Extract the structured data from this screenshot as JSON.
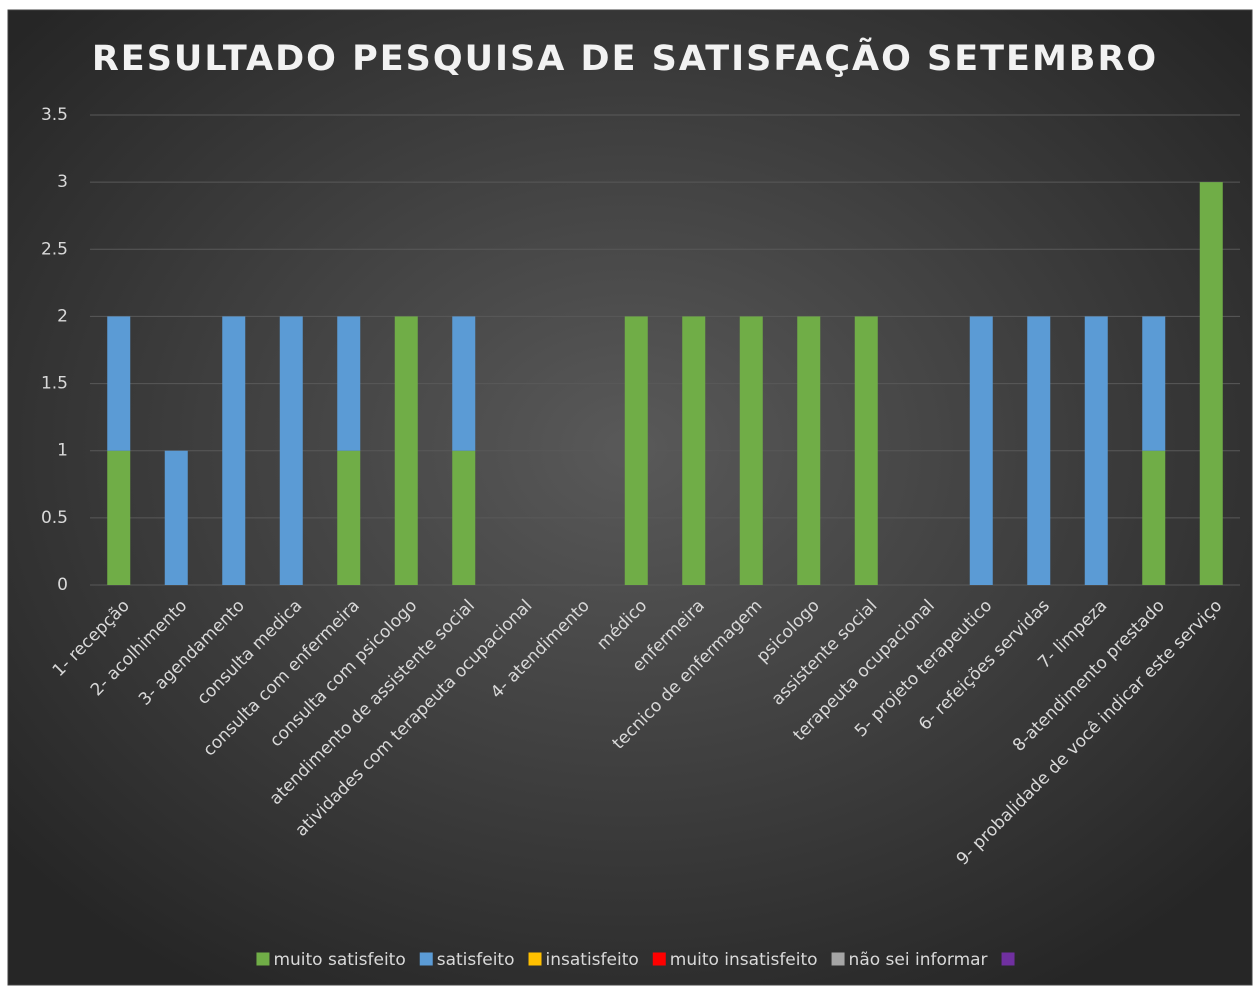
{
  "chart_data": {
    "type": "bar",
    "stacked": true,
    "title": "RESULTADO PESQUISA DE SATISFAÇÃO SETEMBRO",
    "categories": [
      "1-  recepção",
      "2- acolhimento",
      "3- agendamento",
      "consulta medica",
      "consulta com enfermeira",
      "consulta com psicologo",
      "atendimento de assistente social",
      "atividades com terapeuta ocupacional",
      "4- atendimento",
      "médico",
      "enfermeira",
      "tecnico de enfermagem",
      "psicologo",
      "assistente social",
      "terapeuta ocupacional",
      "5- projeto terapeutico",
      "6- refeições servidas",
      "7- limpeza",
      "8-atendimento prestado",
      "9- probalidade de você indicar este serviço"
    ],
    "series": [
      {
        "name": "muito satisfeito",
        "color": "#70ad47",
        "values": [
          1,
          null,
          null,
          null,
          1,
          2,
          1,
          null,
          null,
          2,
          2,
          2,
          2,
          2,
          null,
          null,
          null,
          null,
          1,
          3
        ]
      },
      {
        "name": "satisfeito",
        "color": "#5b9bd5",
        "values": [
          1,
          1,
          2,
          2,
          1,
          null,
          1,
          null,
          null,
          null,
          null,
          null,
          null,
          null,
          null,
          2,
          2,
          2,
          1,
          null
        ]
      },
      {
        "name": "insatisfeito",
        "color": "#ffc000",
        "values": [
          null,
          null,
          null,
          null,
          null,
          null,
          null,
          null,
          null,
          null,
          null,
          null,
          null,
          null,
          null,
          null,
          null,
          null,
          null,
          null
        ]
      },
      {
        "name": "muito insatisfeito",
        "color": "#ff0000",
        "values": [
          null,
          null,
          null,
          null,
          null,
          null,
          null,
          null,
          null,
          null,
          null,
          null,
          null,
          null,
          null,
          null,
          null,
          null,
          null,
          null
        ]
      },
      {
        "name": "não sei informar",
        "color": "#a5a5a5",
        "values": [
          null,
          null,
          null,
          null,
          null,
          null,
          null,
          null,
          null,
          null,
          null,
          null,
          null,
          null,
          null,
          null,
          null,
          null,
          null,
          null
        ]
      },
      {
        "color": "#7030a0",
        "values": [
          null,
          null,
          null,
          null,
          null,
          null,
          null,
          null,
          null,
          null,
          null,
          null,
          null,
          null,
          null,
          null,
          null,
          null,
          null,
          null
        ]
      }
    ],
    "ylim": [
      0,
      3.5
    ],
    "yticks": [
      0,
      0.5,
      1,
      1.5,
      2,
      2.5,
      3,
      3.5
    ],
    "grid": true,
    "legend": "bottom"
  }
}
